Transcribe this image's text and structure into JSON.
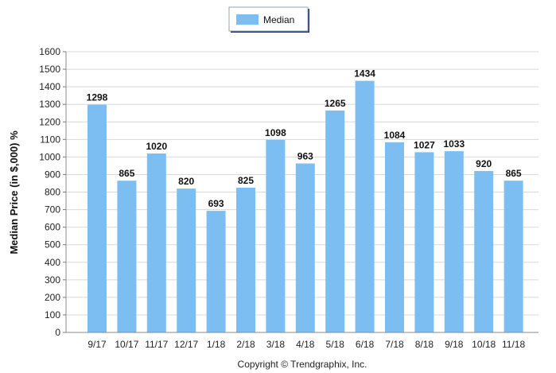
{
  "chart_data": {
    "type": "bar",
    "categories": [
      "9/17",
      "10/17",
      "11/17",
      "12/17",
      "1/18",
      "2/18",
      "3/18",
      "4/18",
      "5/18",
      "6/18",
      "7/18",
      "8/18",
      "9/18",
      "10/18",
      "11/18"
    ],
    "series": [
      {
        "name": "Median",
        "values": [
          1298,
          865,
          1020,
          820,
          693,
          825,
          1098,
          963,
          1265,
          1434,
          1084,
          1027,
          1033,
          920,
          865
        ]
      }
    ],
    "ylabel": "Median Price (in $,000) %",
    "xlabel": "",
    "ylim": [
      0,
      1600
    ],
    "ytick_step": 100,
    "grid": true,
    "legend_position": "top-center",
    "data_labels": true,
    "bar_color": "#7dbef2",
    "grid_color": "#d8d8d8"
  },
  "footer": {
    "copyright": "Copyright © Trendgraphix, Inc."
  }
}
